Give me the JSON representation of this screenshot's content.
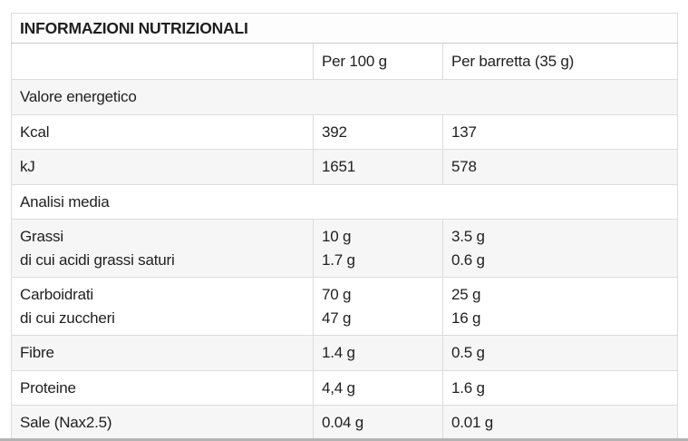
{
  "table": {
    "title": "INFORMAZIONI NUTRIZIONALI",
    "columns": {
      "label": "",
      "per_100g": "Per 100 g",
      "per_barretta": "Per barretta (35 g)"
    },
    "rows": [
      {
        "type": "section",
        "label": "Valore energetico"
      },
      {
        "type": "data",
        "label": "Kcal",
        "per_100g": "392",
        "per_barretta": "137"
      },
      {
        "type": "data",
        "label": "kJ",
        "per_100g": "1651",
        "per_barretta": "578"
      },
      {
        "type": "section",
        "label": "Analisi media"
      },
      {
        "type": "data",
        "label": "Grassi",
        "label_sub": "di cui acidi grassi saturi",
        "per_100g": "10 g",
        "per_100g_sub": "1.7 g",
        "per_barretta": "3.5 g",
        "per_barretta_sub": "0.6 g"
      },
      {
        "type": "data",
        "label": "Carboidrati",
        "label_sub": "di cui zuccheri",
        "per_100g": "70 g",
        "per_100g_sub": "47 g",
        "per_barretta": "25 g",
        "per_barretta_sub": "16 g"
      },
      {
        "type": "data",
        "label": "Fibre",
        "per_100g": "1.4 g",
        "per_barretta": "0.5 g"
      },
      {
        "type": "data",
        "label": "Proteine",
        "per_100g": "4,4 g",
        "per_barretta": "1.6 g"
      },
      {
        "type": "data",
        "label": "Sale (Nax2.5)",
        "per_100g": "0.04 g",
        "per_barretta": "0.01 g"
      }
    ],
    "colors": {
      "stripe_bg": "#f6f6f6",
      "outer_border": "#b5b5b5",
      "inner_border": "#dcdcdc",
      "text": "#1f1f1f"
    }
  }
}
